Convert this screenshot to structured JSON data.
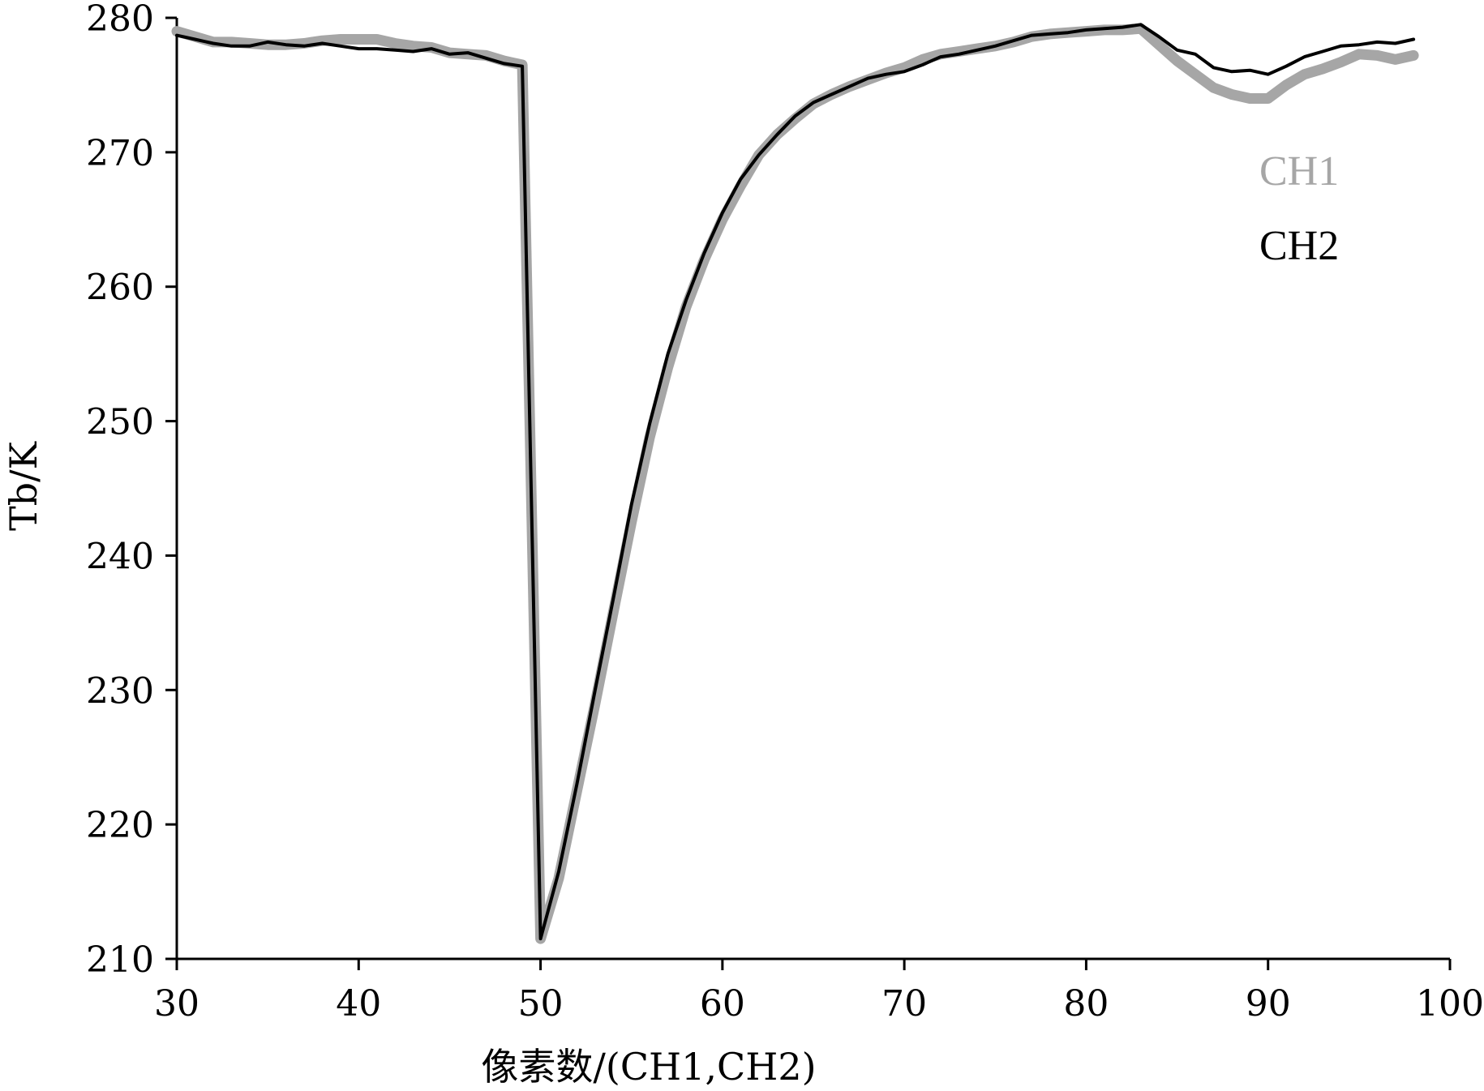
{
  "chart_data": {
    "type": "line",
    "xlabel": "像素数/(CH1,CH2)",
    "ylabel": "Tb/K",
    "xlim": [
      30,
      100
    ],
    "ylim": [
      210,
      280
    ],
    "xticks": [
      30,
      40,
      50,
      60,
      70,
      80,
      90,
      100
    ],
    "yticks": [
      210,
      220,
      230,
      240,
      250,
      260,
      270,
      280
    ],
    "grid": false,
    "legend": "right",
    "series": [
      {
        "name": "CH1",
        "color": "#a6a6a6",
        "x": [
          30,
          31,
          32,
          33,
          34,
          35,
          36,
          37,
          38,
          39,
          40,
          41,
          42,
          43,
          44,
          45,
          46,
          47,
          48,
          49,
          50,
          51,
          52,
          53,
          54,
          55,
          56,
          57,
          58,
          59,
          60,
          61,
          62,
          63,
          64,
          65,
          66,
          67,
          68,
          69,
          70,
          71,
          72,
          73,
          74,
          75,
          76,
          77,
          78,
          79,
          80,
          81,
          82,
          83,
          84,
          85,
          86,
          87,
          88,
          89,
          90,
          91,
          92,
          93,
          94,
          95,
          96,
          97,
          98
        ],
        "y": [
          279.0,
          278.6,
          278.2,
          278.2,
          278.1,
          278.0,
          278.0,
          278.1,
          278.3,
          278.4,
          278.4,
          278.4,
          278.1,
          277.9,
          277.8,
          277.4,
          277.3,
          277.2,
          276.8,
          276.5,
          211.5,
          216.0,
          222.5,
          229.0,
          235.8,
          242.5,
          248.8,
          254.0,
          258.5,
          262.0,
          265.0,
          267.5,
          269.8,
          271.3,
          272.5,
          273.6,
          274.3,
          274.9,
          275.4,
          275.9,
          276.3,
          276.9,
          277.3,
          277.5,
          277.7,
          277.9,
          278.2,
          278.6,
          278.8,
          278.9,
          279.0,
          279.1,
          279.1,
          279.2,
          278.0,
          276.8,
          275.8,
          274.8,
          274.3,
          274.0,
          274.0,
          275.0,
          275.8,
          276.2,
          276.7,
          277.3,
          277.2,
          276.9,
          277.2
        ]
      },
      {
        "name": "CH2",
        "color": "#000000",
        "x": [
          30,
          31,
          32,
          33,
          34,
          35,
          36,
          37,
          38,
          39,
          40,
          41,
          42,
          43,
          44,
          45,
          46,
          47,
          48,
          49,
          50,
          51,
          52,
          53,
          54,
          55,
          56,
          57,
          58,
          59,
          60,
          61,
          62,
          63,
          64,
          65,
          66,
          67,
          68,
          69,
          70,
          71,
          72,
          73,
          74,
          75,
          76,
          77,
          78,
          79,
          80,
          81,
          82,
          83,
          84,
          85,
          86,
          87,
          88,
          89,
          90,
          91,
          92,
          93,
          94,
          95,
          96,
          97,
          98
        ],
        "y": [
          278.7,
          278.4,
          278.1,
          277.9,
          277.9,
          278.2,
          278.0,
          277.9,
          278.1,
          277.9,
          277.7,
          277.7,
          277.6,
          277.5,
          277.7,
          277.3,
          277.4,
          277.0,
          276.6,
          276.4,
          211.5,
          216.5,
          223.0,
          230.0,
          236.8,
          243.8,
          249.8,
          255.0,
          259.0,
          262.5,
          265.5,
          268.0,
          269.8,
          271.3,
          272.7,
          273.7,
          274.3,
          274.9,
          275.5,
          275.8,
          276.0,
          276.5,
          277.1,
          277.3,
          277.6,
          277.9,
          278.3,
          278.7,
          278.8,
          278.9,
          279.1,
          279.2,
          279.3,
          279.5,
          278.6,
          277.6,
          277.3,
          276.3,
          276.0,
          276.1,
          275.8,
          276.4,
          277.1,
          277.5,
          277.9,
          278.0,
          278.2,
          278.1,
          278.4
        ]
      }
    ]
  }
}
